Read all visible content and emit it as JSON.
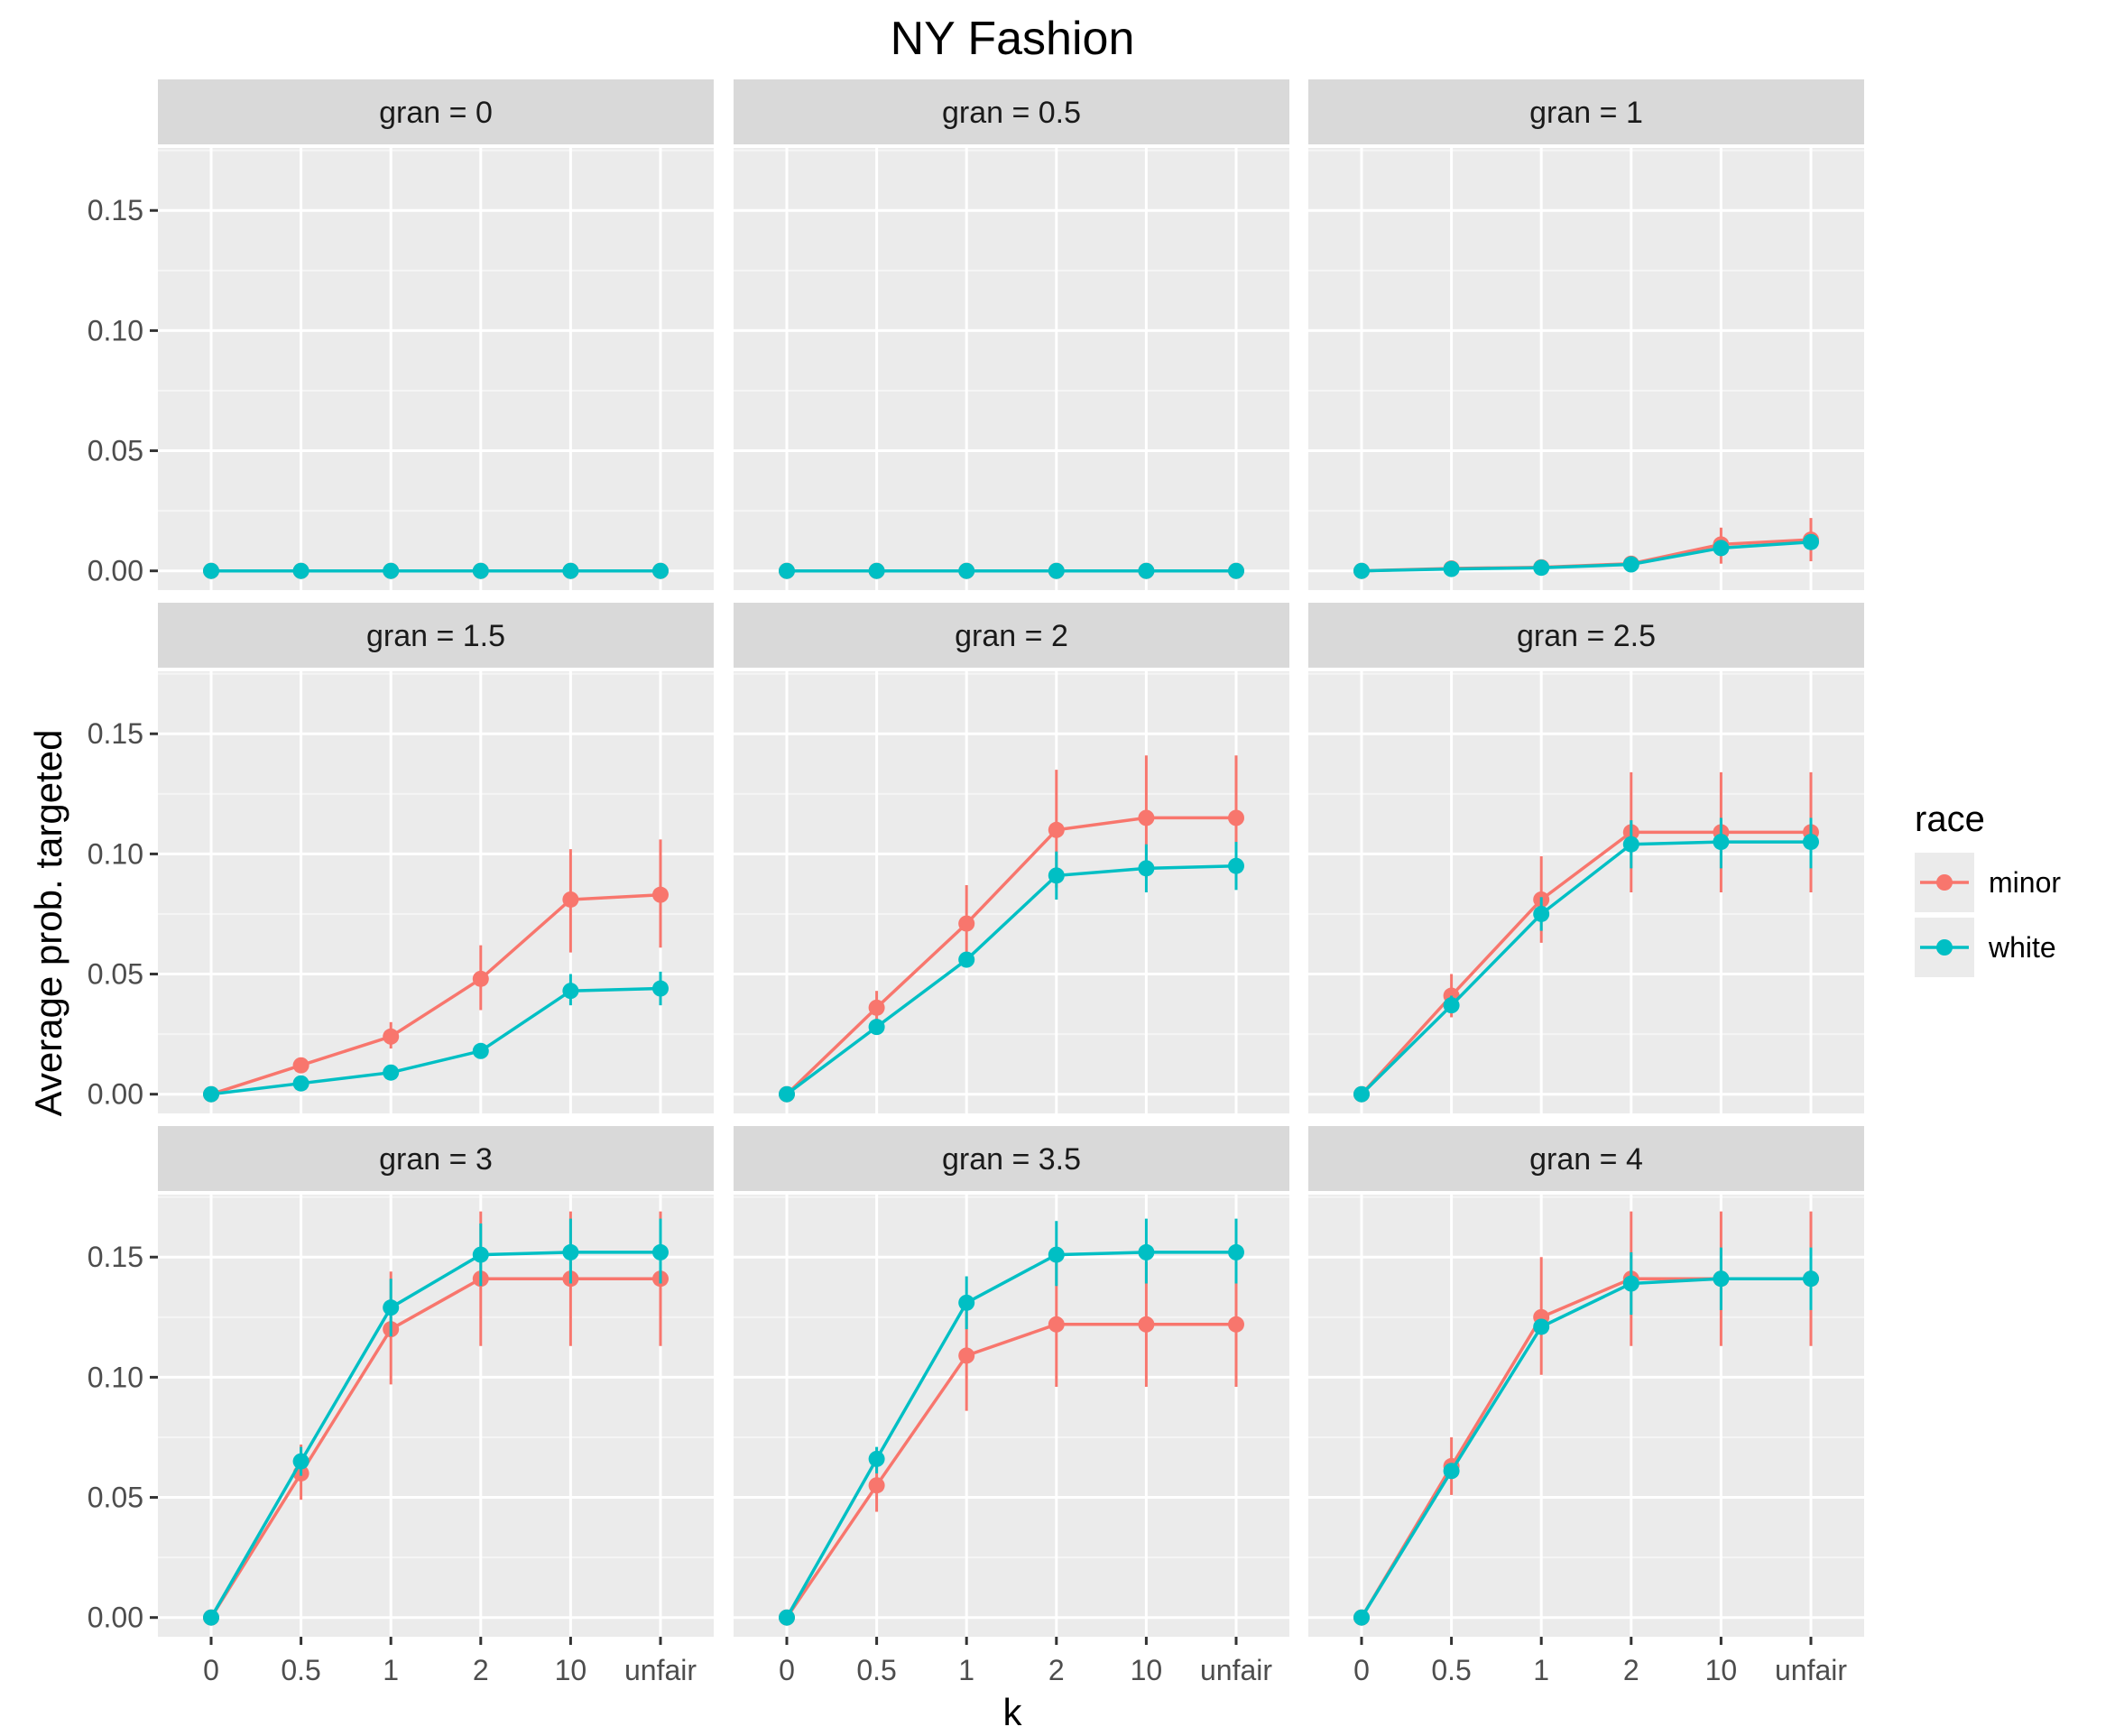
{
  "chart_data": {
    "type": "line",
    "title": "NY Fashion",
    "xlabel": "k",
    "ylabel": "Average prob. targeted",
    "x_categories": [
      "0",
      "0.5",
      "1",
      "2",
      "10",
      "unfair"
    ],
    "y_ticks": [
      0.0,
      0.05,
      0.1,
      0.15
    ],
    "y_tick_labels": [
      "0.00",
      "0.05",
      "0.10",
      "0.15"
    ],
    "ylim": [
      -0.008,
      0.176
    ],
    "facet_prefix": "gran = ",
    "legend": {
      "title": "race",
      "position": "right",
      "entries": [
        {
          "name": "minor",
          "color": "#F8766D"
        },
        {
          "name": "white",
          "color": "#00BFC4"
        }
      ]
    },
    "panels": [
      {
        "gran": "0",
        "series": [
          {
            "name": "minor",
            "values": [
              0,
              0,
              0,
              0,
              0,
              0
            ],
            "lo": [
              0,
              0,
              0,
              0,
              0,
              0
            ],
            "hi": [
              0,
              0,
              0,
              0,
              0,
              0
            ]
          },
          {
            "name": "white",
            "values": [
              0,
              0,
              0,
              0,
              0,
              0
            ],
            "lo": [
              0,
              0,
              0,
              0,
              0,
              0
            ],
            "hi": [
              0,
              0,
              0,
              0,
              0,
              0
            ]
          }
        ]
      },
      {
        "gran": "0.5",
        "series": [
          {
            "name": "minor",
            "values": [
              0,
              0,
              0,
              0,
              0,
              0
            ],
            "lo": [
              0,
              0,
              0,
              0,
              0,
              0
            ],
            "hi": [
              0,
              0,
              0,
              0,
              0,
              0
            ]
          },
          {
            "name": "white",
            "values": [
              0,
              0,
              0,
              0,
              0,
              0
            ],
            "lo": [
              0,
              0,
              0,
              0,
              0,
              0
            ],
            "hi": [
              0,
              0,
              0,
              0,
              0,
              0
            ]
          }
        ]
      },
      {
        "gran": "1",
        "series": [
          {
            "name": "minor",
            "values": [
              0,
              0.001,
              0.0015,
              0.003,
              0.011,
              0.013
            ],
            "lo": [
              0,
              0.001,
              0.0015,
              0.003,
              0.003,
              0.004
            ],
            "hi": [
              0,
              0.001,
              0.0015,
              0.003,
              0.018,
              0.022
            ]
          },
          {
            "name": "white",
            "values": [
              0,
              0.0008,
              0.0013,
              0.0027,
              0.0095,
              0.012
            ],
            "lo": [
              0,
              0.0008,
              0.0013,
              0.0027,
              0.0095,
              0.012
            ],
            "hi": [
              0,
              0.0008,
              0.0013,
              0.0027,
              0.0095,
              0.012
            ]
          }
        ]
      },
      {
        "gran": "1.5",
        "series": [
          {
            "name": "minor",
            "values": [
              0,
              0.012,
              0.024,
              0.048,
              0.081,
              0.083
            ],
            "lo": [
              0,
              0.012,
              0.019,
              0.035,
              0.059,
              0.061
            ],
            "hi": [
              0,
              0.012,
              0.03,
              0.062,
              0.102,
              0.106
            ]
          },
          {
            "name": "white",
            "values": [
              0,
              0.0045,
              0.009,
              0.018,
              0.043,
              0.044
            ],
            "lo": [
              0,
              0.0045,
              0.009,
              0.018,
              0.037,
              0.037
            ],
            "hi": [
              0,
              0.0045,
              0.009,
              0.018,
              0.05,
              0.051
            ]
          }
        ]
      },
      {
        "gran": "2",
        "series": [
          {
            "name": "minor",
            "values": [
              0,
              0.036,
              0.071,
              0.11,
              0.115,
              0.115
            ],
            "lo": [
              0,
              0.03,
              0.056,
              0.086,
              0.09,
              0.09
            ],
            "hi": [
              0,
              0.043,
              0.087,
              0.135,
              0.141,
              0.141
            ]
          },
          {
            "name": "white",
            "values": [
              0,
              0.028,
              0.056,
              0.091,
              0.094,
              0.095
            ],
            "lo": [
              0,
              0.028,
              0.056,
              0.081,
              0.084,
              0.085
            ],
            "hi": [
              0,
              0.028,
              0.056,
              0.101,
              0.104,
              0.105
            ]
          }
        ]
      },
      {
        "gran": "2.5",
        "series": [
          {
            "name": "minor",
            "values": [
              0,
              0.041,
              0.081,
              0.109,
              0.109,
              0.109
            ],
            "lo": [
              0,
              0.032,
              0.063,
              0.084,
              0.084,
              0.084
            ],
            "hi": [
              0,
              0.05,
              0.099,
              0.134,
              0.134,
              0.134
            ]
          },
          {
            "name": "white",
            "values": [
              0,
              0.037,
              0.075,
              0.104,
              0.105,
              0.105
            ],
            "lo": [
              0,
              0.034,
              0.068,
              0.094,
              0.094,
              0.094
            ],
            "hi": [
              0,
              0.041,
              0.082,
              0.114,
              0.115,
              0.115
            ]
          }
        ]
      },
      {
        "gran": "3",
        "series": [
          {
            "name": "minor",
            "values": [
              0,
              0.06,
              0.12,
              0.141,
              0.141,
              0.141
            ],
            "lo": [
              0,
              0.049,
              0.097,
              0.113,
              0.113,
              0.113
            ],
            "hi": [
              0,
              0.072,
              0.144,
              0.169,
              0.169,
              0.169
            ]
          },
          {
            "name": "white",
            "values": [
              0,
              0.065,
              0.129,
              0.151,
              0.152,
              0.152
            ],
            "lo": [
              0,
              0.059,
              0.117,
              0.138,
              0.139,
              0.139
            ],
            "hi": [
              0,
              0.071,
              0.141,
              0.164,
              0.166,
              0.166
            ]
          }
        ]
      },
      {
        "gran": "3.5",
        "series": [
          {
            "name": "minor",
            "values": [
              0,
              0.055,
              0.109,
              0.122,
              0.122,
              0.122
            ],
            "lo": [
              0,
              0.044,
              0.086,
              0.096,
              0.096,
              0.096
            ],
            "hi": [
              0,
              0.066,
              0.132,
              0.148,
              0.148,
              0.148
            ]
          },
          {
            "name": "white",
            "values": [
              0,
              0.066,
              0.131,
              0.151,
              0.152,
              0.152
            ],
            "lo": [
              0,
              0.06,
              0.12,
              0.138,
              0.139,
              0.139
            ],
            "hi": [
              0,
              0.071,
              0.142,
              0.165,
              0.166,
              0.166
            ]
          }
        ]
      },
      {
        "gran": "4",
        "series": [
          {
            "name": "minor",
            "values": [
              0,
              0.063,
              0.125,
              0.141,
              0.141,
              0.141
            ],
            "lo": [
              0,
              0.051,
              0.101,
              0.113,
              0.113,
              0.113
            ],
            "hi": [
              0,
              0.075,
              0.15,
              0.169,
              0.169,
              0.169
            ]
          },
          {
            "name": "white",
            "values": [
              0,
              0.061,
              0.121,
              0.139,
              0.141,
              0.141
            ],
            "lo": [
              0,
              0.061,
              0.121,
              0.126,
              0.128,
              0.128
            ],
            "hi": [
              0,
              0.061,
              0.121,
              0.152,
              0.154,
              0.154
            ]
          }
        ]
      }
    ]
  }
}
